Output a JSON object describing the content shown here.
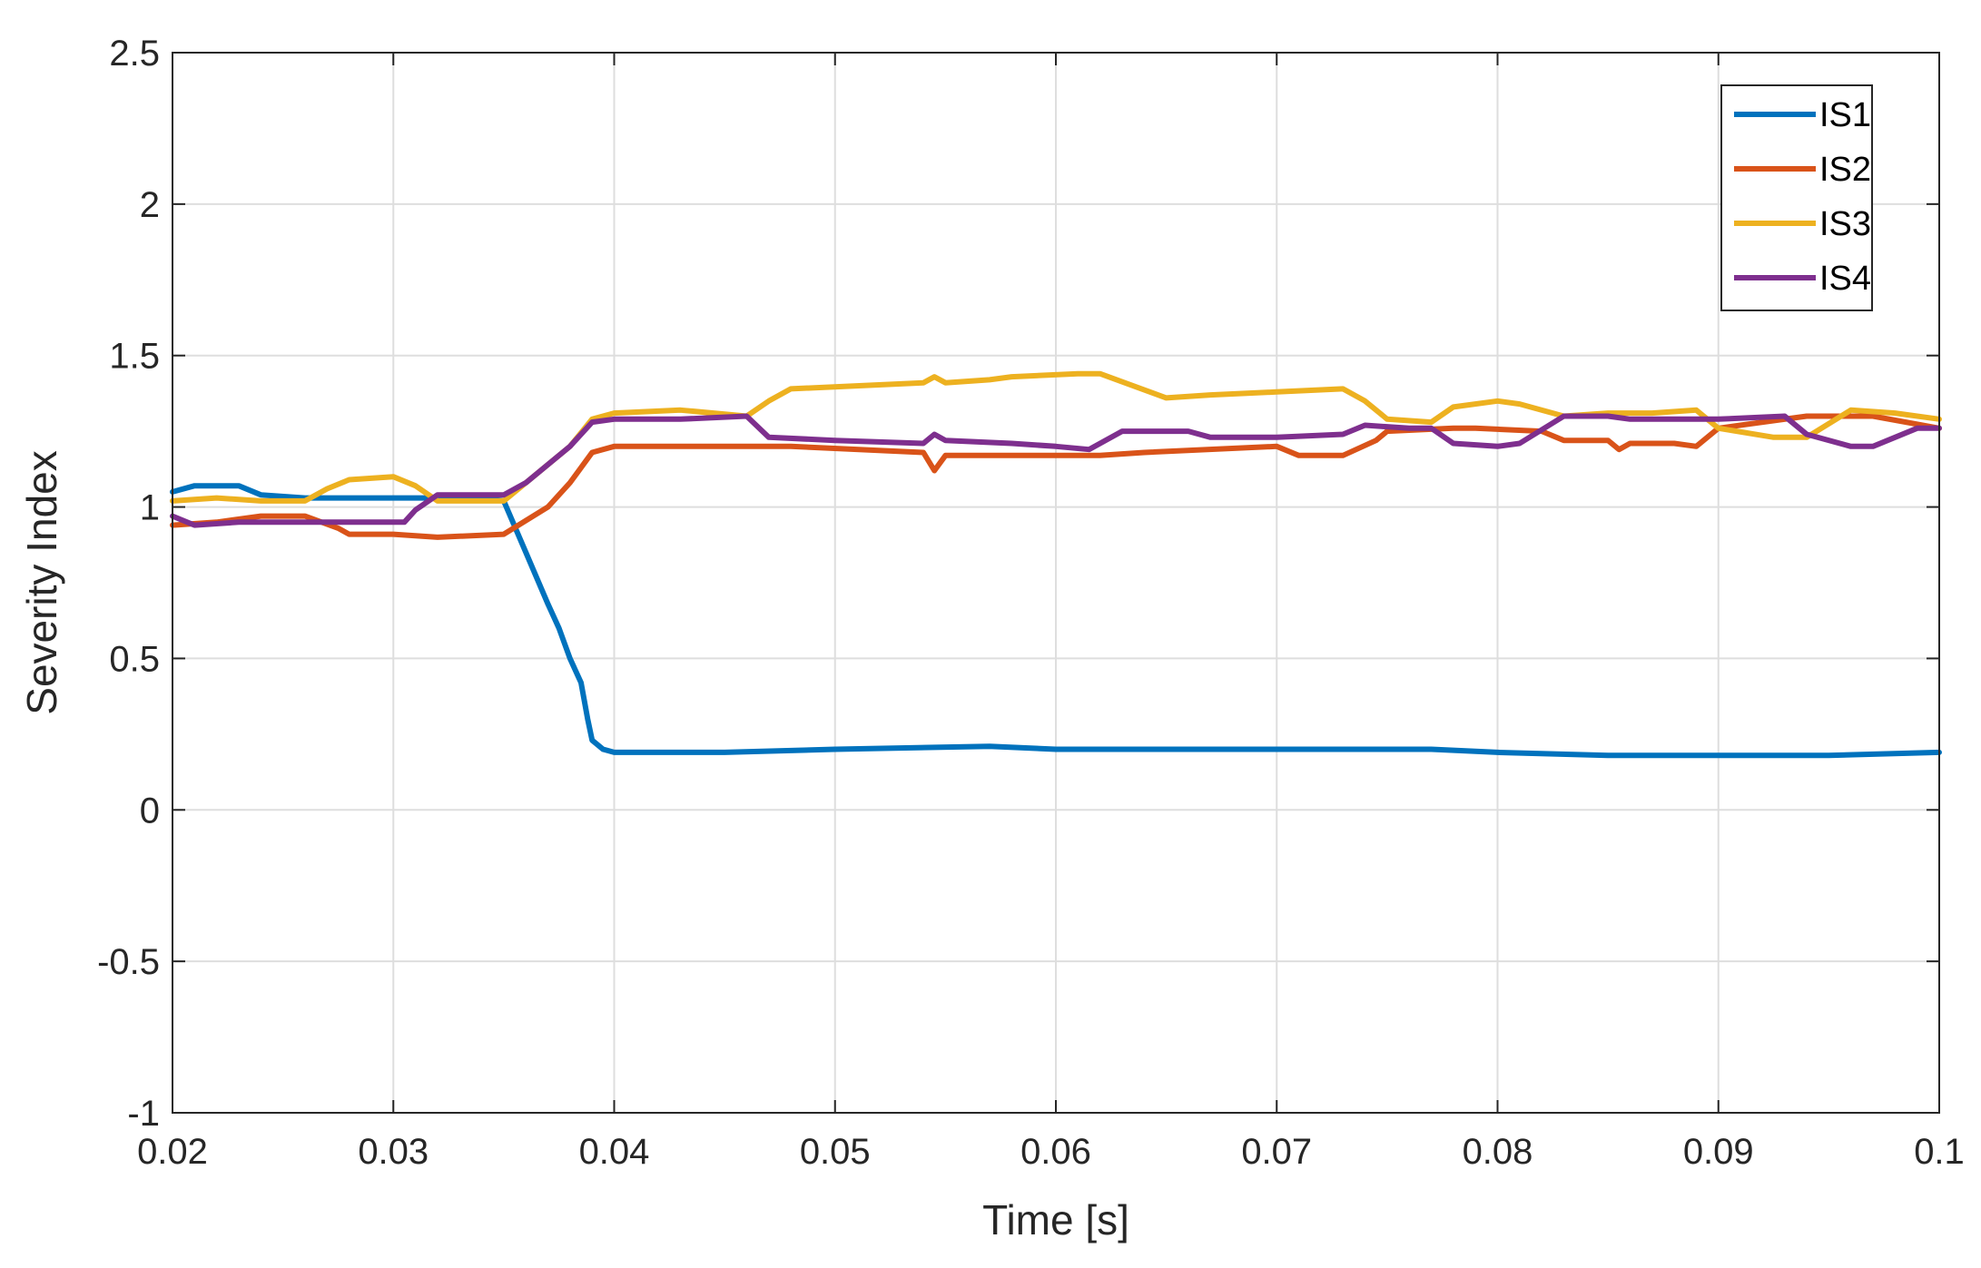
{
  "chart_data": {
    "type": "line",
    "xlabel": "Time [s]",
    "ylabel": "Severity Index",
    "xlim": [
      0.02,
      0.1
    ],
    "ylim": [
      -1,
      2.5
    ],
    "xticks": [
      0.02,
      0.03,
      0.04,
      0.05,
      0.06,
      0.07,
      0.08,
      0.09,
      0.1
    ],
    "xtick_labels": [
      "0.02",
      "0.03",
      "0.04",
      "0.05",
      "0.06",
      "0.07",
      "0.08",
      "0.09",
      "0.1"
    ],
    "yticks": [
      -1,
      -0.5,
      0,
      0.5,
      1,
      1.5,
      2,
      2.5
    ],
    "ytick_labels": [
      "-1",
      "-0.5",
      "0",
      "0.5",
      "1",
      "1.5",
      "2",
      "2.5"
    ],
    "grid": true,
    "legend_position": "top-right",
    "series": [
      {
        "name": "IS1",
        "color": "#0072BD",
        "x": [
          0.02,
          0.021,
          0.023,
          0.024,
          0.026,
          0.03,
          0.034,
          0.035,
          0.036,
          0.037,
          0.0375,
          0.038,
          0.0385,
          0.0388,
          0.039,
          0.0395,
          0.04,
          0.045,
          0.05,
          0.057,
          0.06,
          0.07,
          0.077,
          0.08,
          0.085,
          0.09,
          0.095,
          0.1
        ],
        "y": [
          1.05,
          1.07,
          1.07,
          1.04,
          1.03,
          1.03,
          1.03,
          1.02,
          0.85,
          0.68,
          0.6,
          0.5,
          0.42,
          0.3,
          0.23,
          0.2,
          0.19,
          0.19,
          0.2,
          0.21,
          0.2,
          0.2,
          0.2,
          0.19,
          0.18,
          0.18,
          0.18,
          0.19
        ]
      },
      {
        "name": "IS2",
        "color": "#D95319",
        "x": [
          0.02,
          0.022,
          0.024,
          0.026,
          0.0275,
          0.028,
          0.03,
          0.032,
          0.035,
          0.037,
          0.038,
          0.039,
          0.04,
          0.045,
          0.048,
          0.054,
          0.0545,
          0.055,
          0.06,
          0.062,
          0.064,
          0.07,
          0.071,
          0.073,
          0.0745,
          0.075,
          0.078,
          0.079,
          0.082,
          0.083,
          0.085,
          0.0855,
          0.086,
          0.088,
          0.089,
          0.09,
          0.092,
          0.094,
          0.095,
          0.097,
          0.1
        ],
        "y": [
          0.94,
          0.95,
          0.97,
          0.97,
          0.93,
          0.91,
          0.91,
          0.9,
          0.91,
          1.0,
          1.08,
          1.18,
          1.2,
          1.2,
          1.2,
          1.18,
          1.12,
          1.17,
          1.17,
          1.17,
          1.18,
          1.2,
          1.17,
          1.17,
          1.22,
          1.25,
          1.26,
          1.26,
          1.25,
          1.22,
          1.22,
          1.19,
          1.21,
          1.21,
          1.2,
          1.26,
          1.28,
          1.3,
          1.3,
          1.3,
          1.26
        ]
      },
      {
        "name": "IS3",
        "color": "#EDB120",
        "x": [
          0.02,
          0.022,
          0.024,
          0.026,
          0.027,
          0.028,
          0.03,
          0.031,
          0.032,
          0.035,
          0.036,
          0.038,
          0.039,
          0.04,
          0.043,
          0.046,
          0.047,
          0.048,
          0.054,
          0.0545,
          0.055,
          0.057,
          0.058,
          0.061,
          0.062,
          0.0635,
          0.065,
          0.067,
          0.07,
          0.073,
          0.074,
          0.075,
          0.077,
          0.078,
          0.08,
          0.081,
          0.083,
          0.085,
          0.087,
          0.089,
          0.09,
          0.0925,
          0.094,
          0.096,
          0.098,
          0.1
        ],
        "y": [
          1.02,
          1.03,
          1.02,
          1.02,
          1.06,
          1.09,
          1.1,
          1.07,
          1.02,
          1.02,
          1.08,
          1.2,
          1.29,
          1.31,
          1.32,
          1.3,
          1.35,
          1.39,
          1.41,
          1.43,
          1.41,
          1.42,
          1.43,
          1.44,
          1.44,
          1.4,
          1.36,
          1.37,
          1.38,
          1.39,
          1.35,
          1.29,
          1.28,
          1.33,
          1.35,
          1.34,
          1.3,
          1.31,
          1.31,
          1.32,
          1.26,
          1.23,
          1.23,
          1.32,
          1.31,
          1.29
        ]
      },
      {
        "name": "IS4",
        "color": "#7E2F8E",
        "x": [
          0.02,
          0.021,
          0.023,
          0.027,
          0.029,
          0.0305,
          0.031,
          0.032,
          0.035,
          0.036,
          0.038,
          0.039,
          0.04,
          0.043,
          0.046,
          0.047,
          0.05,
          0.054,
          0.0545,
          0.055,
          0.058,
          0.06,
          0.0615,
          0.063,
          0.066,
          0.067,
          0.07,
          0.073,
          0.074,
          0.076,
          0.077,
          0.078,
          0.08,
          0.081,
          0.083,
          0.085,
          0.086,
          0.09,
          0.093,
          0.094,
          0.096,
          0.097,
          0.099,
          0.1
        ],
        "y": [
          0.97,
          0.94,
          0.95,
          0.95,
          0.95,
          0.95,
          0.99,
          1.04,
          1.04,
          1.08,
          1.2,
          1.28,
          1.29,
          1.29,
          1.3,
          1.23,
          1.22,
          1.21,
          1.24,
          1.22,
          1.21,
          1.2,
          1.19,
          1.25,
          1.25,
          1.23,
          1.23,
          1.24,
          1.27,
          1.26,
          1.26,
          1.21,
          1.2,
          1.21,
          1.3,
          1.3,
          1.29,
          1.29,
          1.3,
          1.24,
          1.2,
          1.2,
          1.26,
          1.26
        ]
      }
    ]
  }
}
